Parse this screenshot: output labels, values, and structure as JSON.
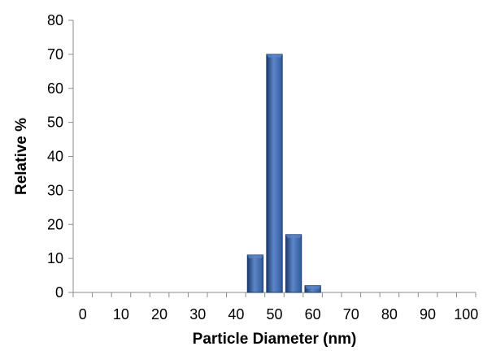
{
  "chart_data": {
    "type": "bar",
    "title": "",
    "xlabel": "Particle Diameter (nm)",
    "ylabel": "Relative %",
    "xlim": [
      -2.5,
      102.5
    ],
    "ylim": [
      0,
      80
    ],
    "x_ticks": [
      0,
      10,
      20,
      30,
      40,
      50,
      60,
      70,
      80,
      90,
      100
    ],
    "y_ticks": [
      0,
      10,
      20,
      30,
      40,
      50,
      60,
      70,
      80
    ],
    "bin_width": 5,
    "categories": [
      0,
      5,
      10,
      15,
      20,
      25,
      30,
      35,
      40,
      45,
      50,
      55,
      60,
      65,
      70,
      75,
      80,
      85,
      90,
      95,
      100
    ],
    "values": [
      0,
      0,
      0,
      0,
      0,
      0,
      0,
      0,
      0,
      11,
      70,
      17,
      2,
      0,
      0,
      0,
      0,
      0,
      0,
      0,
      0
    ],
    "grid": false,
    "legend": "none",
    "bar_color": "#2E5A9C",
    "bar_edge_color": "#1B3A6B",
    "bar_highlight_color": "#5D86C8"
  }
}
